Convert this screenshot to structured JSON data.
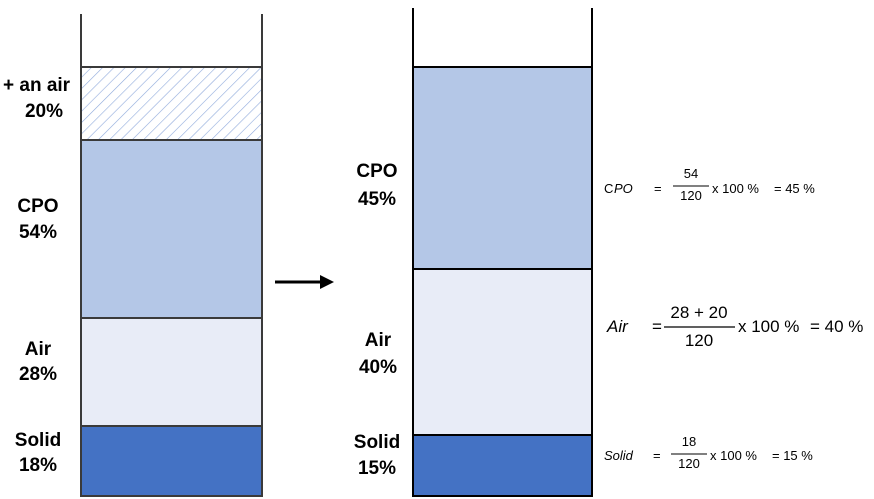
{
  "left_column": {
    "added_air": {
      "label_line1": "+ an air",
      "label_line2": "20%"
    },
    "cpo": {
      "label_line1": "CPO",
      "label_line2": "54%"
    },
    "air": {
      "label_line1": "Air",
      "label_line2": "28%"
    },
    "solid": {
      "label_line1": "Solid",
      "label_line2": "18%"
    }
  },
  "right_column": {
    "cpo": {
      "label_line1": "CPO",
      "label_line2": "45%"
    },
    "air": {
      "label_line1": "Air",
      "label_line2": "40%"
    },
    "solid": {
      "label_line1": "Solid",
      "label_line2": "15%"
    }
  },
  "equations": {
    "cpo": {
      "prefix_c": "C",
      "var": "PO",
      "equals": "=",
      "numerator": "54",
      "denominator": "120",
      "rhs": "x 100 %",
      "result": "= 45 %"
    },
    "air": {
      "var": "Air",
      "equals": "=",
      "numerator": "28 + 20",
      "denominator": "120",
      "rhs": "x 100 %",
      "result": "= 40 %"
    },
    "solid": {
      "var": "Solid",
      "equals": "=",
      "numerator": "18",
      "denominator": "120",
      "rhs": "x 100 %",
      "result": "= 15 %"
    }
  },
  "colors": {
    "cpo": "#b4c7e7",
    "air": "#e8ecf7",
    "solid": "#4472c4",
    "hatch": "#8faadc",
    "outline": "#000000",
    "column_wall": "#3a3a3a"
  },
  "icons": {
    "arrow": "right-arrow-icon"
  }
}
